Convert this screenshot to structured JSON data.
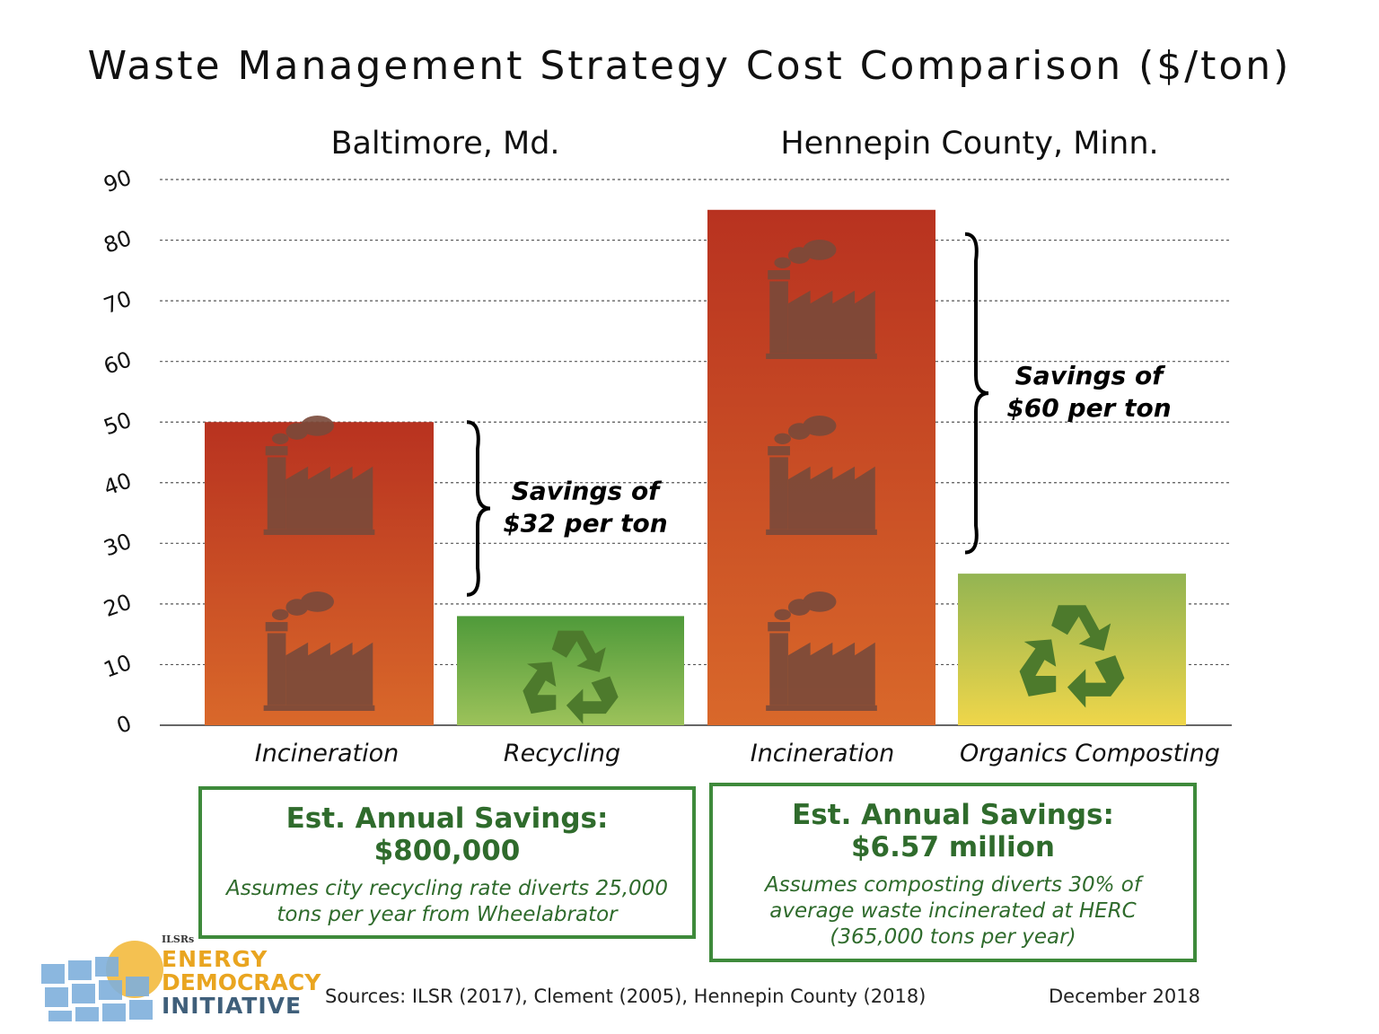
{
  "chart_data": {
    "type": "bar",
    "title": "Waste Management Strategy Cost Comparison ($/ton)",
    "groups": [
      {
        "name": "Baltimore, Md.",
        "categories": [
          "Incineration",
          "Recycling"
        ],
        "values": [
          50,
          18
        ]
      },
      {
        "name": "Hennepin County, Minn.",
        "categories": [
          "Incineration",
          "Organics Composting"
        ],
        "values": [
          85,
          25
        ]
      }
    ],
    "ylim": [
      0,
      90
    ],
    "yticks": [
      0,
      10,
      20,
      30,
      40,
      50,
      60,
      70,
      80,
      90
    ],
    "grid": true,
    "annotations": [
      {
        "group": 0,
        "line1": "Savings of",
        "line2": "$32 per ton"
      },
      {
        "group": 1,
        "line1": "Savings of",
        "line2": "$60 per ton"
      }
    ],
    "colors": {
      "incineration_top": "#b83220",
      "incineration_bottom": "#d9682a",
      "recycling_top": "#4f9a3a",
      "recycling_bottom": "#9cc25a",
      "composting_top": "#93b452",
      "composting_bottom": "#efd64a",
      "factory": "#7a4a3a",
      "recycle_icon": "#4d7a2c"
    }
  },
  "savings_boxes": [
    {
      "heading": "Est. Annual Savings:",
      "amount": "$800,000",
      "note1": "Assumes city recycling rate diverts 25,000",
      "note2": "tons per year from Wheelabrator",
      "note3": ""
    },
    {
      "heading": "Est. Annual Savings:",
      "amount": "$6.57 million",
      "note1": "Assumes composting diverts 30% of",
      "note2": "average waste incinerated at HERC",
      "note3": "(365,000 tons per year)"
    }
  ],
  "footer": {
    "sources": "Sources: ILSR (2017), Clement (2005), Hennepin County (2018)",
    "date": "December 2018"
  },
  "logo": {
    "org": "ILSRs",
    "line1": "ENERGY",
    "line2": "DEMOCRACY",
    "line3": "INITIATIVE"
  }
}
